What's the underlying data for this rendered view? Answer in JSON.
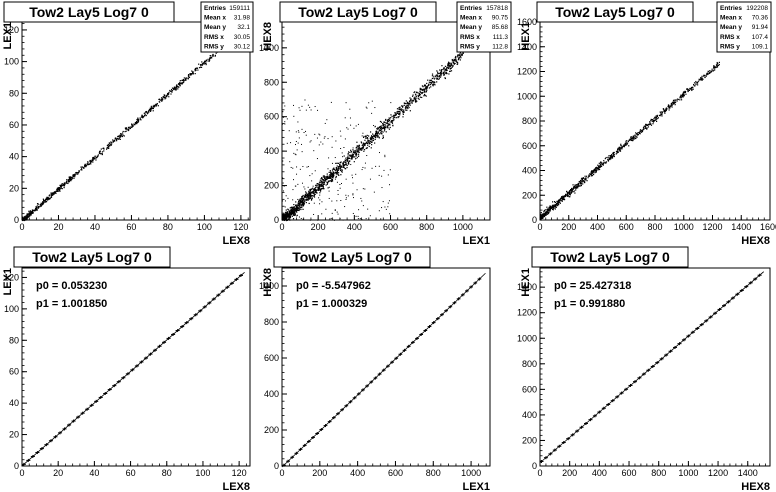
{
  "colors": {
    "background": "#ffffff",
    "frame": "#000000",
    "markers": "#000000"
  },
  "panels": [
    {
      "title": "Tow2 Lay5 Log7 0",
      "stats": [
        [
          "Entries",
          "159111"
        ],
        [
          "Mean x",
          "31.98"
        ],
        [
          "Mean y",
          "32.1"
        ],
        [
          "RMS x",
          "30.05"
        ],
        [
          "RMS y",
          "30.12"
        ]
      ],
      "fit_labels": []
    },
    {
      "title": "Tow2 Lay5 Log7 0",
      "stats": [
        [
          "Entries",
          "157818"
        ],
        [
          "Mean x",
          "90.75"
        ],
        [
          "Mean y",
          "85.68"
        ],
        [
          "RMS x",
          "111.3"
        ],
        [
          "RMS y",
          "112.8"
        ]
      ],
      "fit_labels": []
    },
    {
      "title": "Tow2 Lay5 Log7 0",
      "stats": [
        [
          "Entries",
          "192208"
        ],
        [
          "Mean x",
          "70.36"
        ],
        [
          "Mean y",
          "91.94"
        ],
        [
          "RMS x",
          "107.4"
        ],
        [
          "RMS y",
          "109.1"
        ]
      ],
      "fit_labels": []
    },
    {
      "title": "Tow2 Lay5 Log7 0",
      "stats": [],
      "fit_labels": [
        "p0 = 0.053230",
        "p1 = 1.001850"
      ]
    },
    {
      "title": "Tow2 Lay5 Log7 0",
      "stats": [],
      "fit_labels": [
        "p0 = -5.547962",
        "p1 = 1.000329"
      ]
    },
    {
      "title": "Tow2 Lay5 Log7 0",
      "stats": [],
      "fit_labels": [
        "p0 = 25.427318",
        "p1 = 0.991880"
      ]
    }
  ],
  "chart_data": [
    {
      "type": "scatter",
      "title": "Tow2 Lay5 Log7 0",
      "xlabel": "LEX8",
      "ylabel": "LEX1",
      "xlim": [
        0,
        125
      ],
      "ylim": [
        0,
        125
      ],
      "xticks": [
        0,
        20,
        40,
        60,
        80,
        100,
        120
      ],
      "yticks": [
        0,
        20,
        40,
        60,
        80,
        100,
        120
      ],
      "series": [
        {
          "slope": 1.0,
          "intercept": 0.0,
          "xmin": 0,
          "xmax": 125,
          "spread": 0.8
        }
      ]
    },
    {
      "type": "scatter",
      "title": "Tow2 Lay5 Log7 0",
      "xlabel": "LEX1",
      "ylabel": "HEX8",
      "xlim": [
        0,
        1150
      ],
      "ylim": [
        0,
        1150
      ],
      "xticks": [
        0,
        200,
        400,
        600,
        800,
        1000
      ],
      "yticks": [
        0,
        200,
        400,
        600,
        800,
        1000
      ],
      "series": [
        {
          "slope": 0.97,
          "intercept": 0,
          "xmin": 0,
          "xmax": 1000,
          "spread": 18,
          "outlier_region": [
            0,
            600,
            0,
            700
          ]
        }
      ]
    },
    {
      "type": "scatter",
      "title": "Tow2 Lay5 Log7 0",
      "xlabel": "HEX8",
      "ylabel": "HEX1",
      "xlim": [
        0,
        1600
      ],
      "ylim": [
        0,
        1600
      ],
      "xticks": [
        0,
        200,
        400,
        600,
        800,
        1000,
        1200,
        1400,
        1600
      ],
      "yticks": [
        0,
        200,
        400,
        600,
        800,
        1000,
        1200,
        1400,
        1600
      ],
      "series": [
        {
          "slope": 1.0,
          "intercept": 25,
          "xmin": 0,
          "xmax": 1250,
          "spread": 12
        }
      ]
    },
    {
      "type": "line",
      "title": "Tow2 Lay5 Log7 0",
      "xlabel": "LEX8",
      "ylabel": "LEX1",
      "xlim": [
        0,
        126
      ],
      "ylim": [
        0,
        126
      ],
      "xticks": [
        0,
        20,
        40,
        60,
        80,
        100,
        120
      ],
      "yticks": [
        0,
        20,
        40,
        60,
        80,
        100,
        120
      ],
      "series": [
        {
          "fit_p0": 0.05323,
          "fit_p1": 1.00185,
          "profile_xmin": 1,
          "profile_xmax": 121,
          "profile_step": 2.5
        }
      ]
    },
    {
      "type": "line",
      "title": "Tow2 Lay5 Log7 0",
      "xlabel": "LEX1",
      "ylabel": "HEX8",
      "xlim": [
        0,
        1100
      ],
      "ylim": [
        0,
        1100
      ],
      "xticks": [
        0,
        200,
        400,
        600,
        800,
        1000
      ],
      "yticks": [
        0,
        200,
        400,
        600,
        800,
        1000
      ],
      "series": [
        {
          "fit_p0": -5.547962,
          "fit_p1": 1.000329,
          "profile_xmin": 10,
          "profile_xmax": 1060,
          "profile_step": 22
        }
      ]
    },
    {
      "type": "line",
      "title": "Tow2 Lay5 Log7 0",
      "xlabel": "HEX8",
      "ylabel": "HEX1",
      "xlim": [
        0,
        1550
      ],
      "ylim": [
        0,
        1550
      ],
      "xticks": [
        0,
        200,
        400,
        600,
        800,
        1000,
        1200,
        1400
      ],
      "yticks": [
        0,
        200,
        400,
        600,
        800,
        1000,
        1200,
        1400
      ],
      "series": [
        {
          "fit_p0": 25.427318,
          "fit_p1": 0.99188,
          "profile_xmin": 10,
          "profile_xmax": 1480,
          "profile_step": 30
        }
      ]
    }
  ]
}
